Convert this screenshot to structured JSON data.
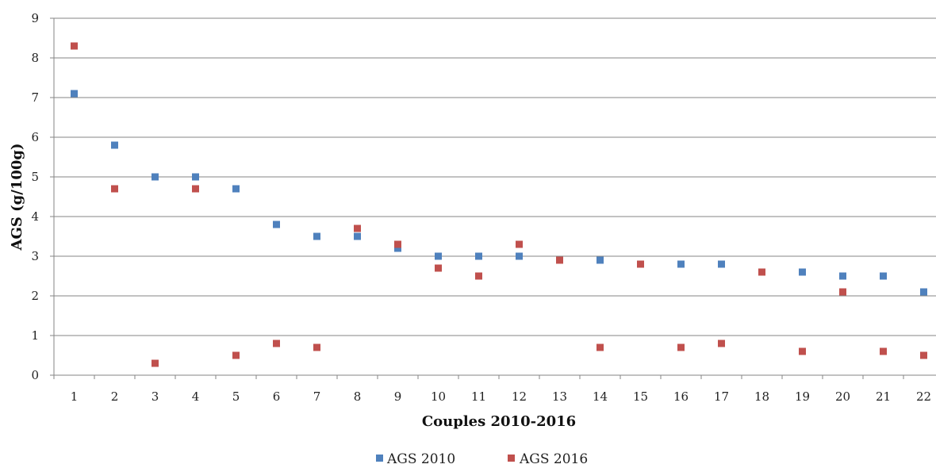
{
  "chart_data": {
    "type": "scatter",
    "xlabel": "Couples 2010-2016",
    "ylabel": "AGS (g/100g)",
    "xlim": [
      0.5,
      22.5
    ],
    "ylim": [
      0,
      9
    ],
    "x_ticks": [
      "1",
      "2",
      "3",
      "4",
      "5",
      "6",
      "7",
      "8",
      "9",
      "10",
      "11",
      "12",
      "13",
      "14",
      "15",
      "16",
      "17",
      "18",
      "19",
      "20",
      "21",
      "22"
    ],
    "y_ticks": [
      "0",
      "1",
      "2",
      "3",
      "4",
      "5",
      "6",
      "7",
      "8",
      "9"
    ],
    "grid": "horizontal",
    "legend_position": "bottom",
    "series": [
      {
        "name": "AGS 2010",
        "color": "#4F81BD",
        "points": [
          {
            "x": 1,
            "y": 7.1
          },
          {
            "x": 2,
            "y": 5.8
          },
          {
            "x": 3,
            "y": 5.0
          },
          {
            "x": 4,
            "y": 5.0
          },
          {
            "x": 5,
            "y": 4.7
          },
          {
            "x": 6,
            "y": 3.8
          },
          {
            "x": 7,
            "y": 3.5
          },
          {
            "x": 8,
            "y": 3.5
          },
          {
            "x": 9,
            "y": 3.2
          },
          {
            "x": 10,
            "y": 3.0
          },
          {
            "x": 11,
            "y": 3.0
          },
          {
            "x": 12,
            "y": 3.0
          },
          {
            "x": 13,
            "y": 2.9
          },
          {
            "x": 14,
            "y": 2.9
          },
          {
            "x": 15,
            "y": 2.8
          },
          {
            "x": 16,
            "y": 2.8
          },
          {
            "x": 17,
            "y": 2.8
          },
          {
            "x": 18,
            "y": 2.6
          },
          {
            "x": 19,
            "y": 2.6
          },
          {
            "x": 20,
            "y": 2.5
          },
          {
            "x": 21,
            "y": 2.5
          },
          {
            "x": 22,
            "y": 2.1
          }
        ]
      },
      {
        "name": "AGS 2016",
        "color": "#C0504D",
        "points": [
          {
            "x": 1,
            "y": 8.3
          },
          {
            "x": 2,
            "y": 4.7
          },
          {
            "x": 3,
            "y": 0.3
          },
          {
            "x": 4,
            "y": 4.7
          },
          {
            "x": 5,
            "y": 0.5
          },
          {
            "x": 6,
            "y": 0.8
          },
          {
            "x": 7,
            "y": 0.7
          },
          {
            "x": 8,
            "y": 3.7
          },
          {
            "x": 9,
            "y": 3.3
          },
          {
            "x": 10,
            "y": 2.7
          },
          {
            "x": 11,
            "y": 2.5
          },
          {
            "x": 12,
            "y": 3.3
          },
          {
            "x": 13,
            "y": 2.9
          },
          {
            "x": 14,
            "y": 0.7
          },
          {
            "x": 15,
            "y": 2.8
          },
          {
            "x": 16,
            "y": 0.7
          },
          {
            "x": 17,
            "y": 0.8
          },
          {
            "x": 18,
            "y": 2.6
          },
          {
            "x": 19,
            "y": 0.6
          },
          {
            "x": 20,
            "y": 2.1
          },
          {
            "x": 21,
            "y": 0.6
          },
          {
            "x": 22,
            "y": 0.5
          }
        ]
      }
    ]
  }
}
